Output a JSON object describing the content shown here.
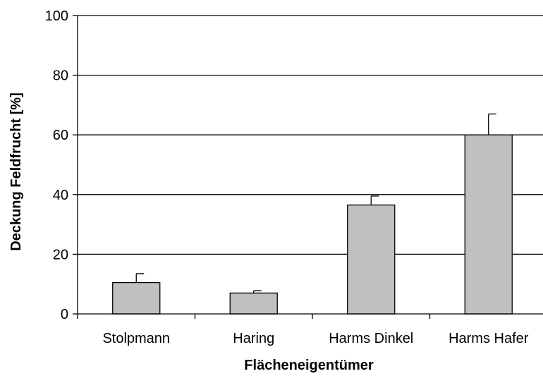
{
  "chart_data": {
    "type": "bar",
    "title": "",
    "xlabel": "Flächeneigentümer",
    "ylabel": "Deckung Feldfrucht [%]",
    "categories": [
      "Stolpmann",
      "Haring",
      "Harms Dinkel",
      "Harms Hafer"
    ],
    "values": [
      10.5,
      7.0,
      36.5,
      60.0
    ],
    "error_upper": [
      3.0,
      0.8,
      3.0,
      7.0
    ],
    "ylim": [
      0,
      100
    ],
    "yticks": [
      0,
      20,
      40,
      60,
      80,
      100
    ],
    "grid": "horizontal major",
    "legend": "none",
    "colors": {
      "bar_fill": "#c0c0c0",
      "bar_stroke": "#000000",
      "grid": "#000000",
      "axis": "#000000"
    }
  }
}
